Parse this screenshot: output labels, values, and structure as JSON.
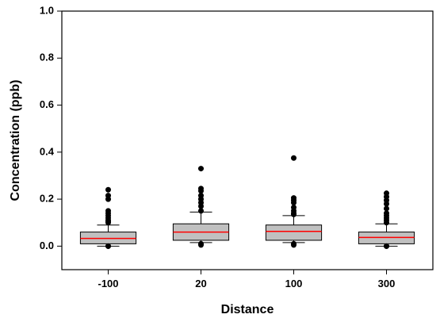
{
  "chart_data": {
    "type": "box",
    "xlabel": "Distance",
    "ylabel": "Concentration (ppb)",
    "ylim": [
      -0.1,
      1.0
    ],
    "yticks": [
      "0.0",
      "0.2",
      "0.4",
      "0.6",
      "0.8",
      "1.0"
    ],
    "ytick_values": [
      0.0,
      0.2,
      0.4,
      0.6,
      0.8,
      1.0
    ],
    "categories": [
      "-100",
      "20",
      "100",
      "300"
    ],
    "grid": false,
    "colors": {
      "box_fill": "#c0c0c0",
      "median": "#ff0000",
      "outline": "#000000",
      "outlier": "#000000"
    },
    "boxes": [
      {
        "category": "-100",
        "whisker_low": 0.0,
        "q1": 0.01,
        "median": 0.033,
        "q3": 0.06,
        "whisker_high": 0.09,
        "outliers": [
          0.0,
          0.0,
          0.1,
          0.105,
          0.11,
          0.12,
          0.13,
          0.14,
          0.15,
          0.2,
          0.215,
          0.24
        ]
      },
      {
        "category": "20",
        "whisker_low": 0.015,
        "q1": 0.025,
        "median": 0.06,
        "q3": 0.095,
        "whisker_high": 0.145,
        "outliers": [
          0.005,
          0.01,
          0.15,
          0.17,
          0.185,
          0.2,
          0.215,
          0.235,
          0.245,
          0.33
        ]
      },
      {
        "category": "100",
        "whisker_low": 0.015,
        "q1": 0.025,
        "median": 0.063,
        "q3": 0.09,
        "whisker_high": 0.13,
        "outliers": [
          0.005,
          0.01,
          0.135,
          0.14,
          0.15,
          0.165,
          0.185,
          0.195,
          0.205,
          0.375
        ]
      },
      {
        "category": "300",
        "whisker_low": 0.0,
        "q1": 0.01,
        "median": 0.037,
        "q3": 0.06,
        "whisker_high": 0.095,
        "outliers": [
          0.0,
          0.0,
          0.1,
          0.11,
          0.12,
          0.13,
          0.14,
          0.16,
          0.18,
          0.195,
          0.21,
          0.225
        ]
      }
    ]
  }
}
